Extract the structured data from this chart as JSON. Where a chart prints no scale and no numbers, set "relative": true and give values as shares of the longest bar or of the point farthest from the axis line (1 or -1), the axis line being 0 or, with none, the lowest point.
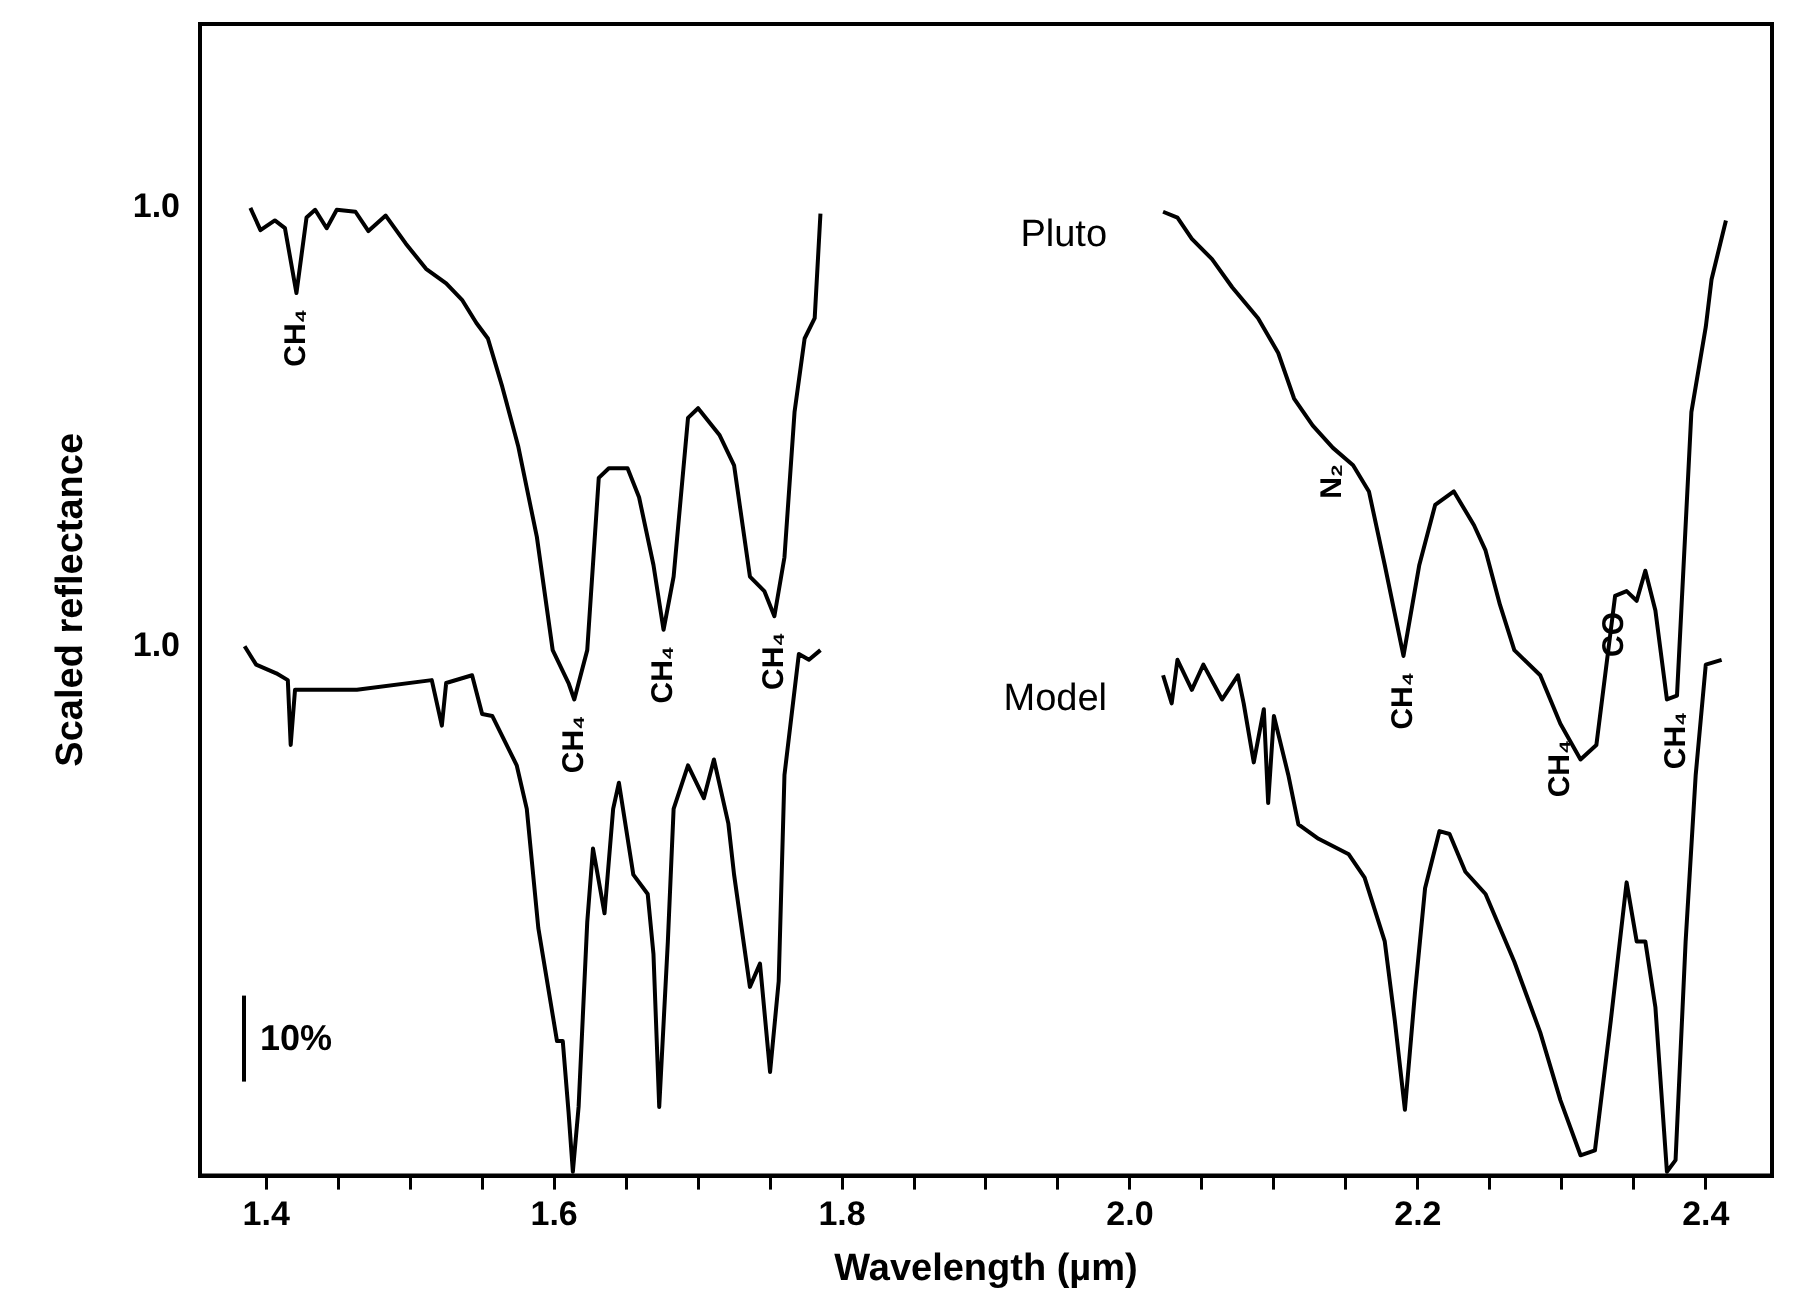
{
  "chart_data": {
    "type": "line",
    "xlabel": "Wavelength (µm)",
    "ylabel": "Scaled reflectance",
    "relative": true,
    "xlim": [
      1.354,
      2.446
    ],
    "xticks": [
      1.4,
      {
        "value": 1.45,
        "label": null
      },
      {
        "value": 1.5,
        "label": null
      },
      {
        "value": 1.55,
        "label": null
      },
      1.6,
      {
        "value": 1.65,
        "label": null
      },
      {
        "value": 1.7,
        "label": null
      },
      {
        "value": 1.75,
        "label": null
      },
      1.8,
      {
        "value": 1.85,
        "label": null
      },
      {
        "value": 1.9,
        "label": null
      },
      {
        "value": 1.95,
        "label": null
      },
      {
        "value": 2.0,
        "label": "2.0"
      },
      {
        "value": 2.05,
        "label": null
      },
      {
        "value": 2.1,
        "label": null
      },
      {
        "value": 2.15,
        "label": null
      },
      2.2,
      {
        "value": 2.25,
        "label": null
      },
      {
        "value": 2.3,
        "label": null
      },
      {
        "value": 2.35,
        "label": null
      },
      2.4
    ],
    "grid": false,
    "legend": false,
    "marker": "none",
    "line_style": "solid",
    "series": [
      {
        "name": "Pluto",
        "color": "#000000",
        "x": [
          1.389,
          1.396,
          1.406,
          1.413,
          1.421,
          1.428,
          1.434,
          1.442,
          1.449,
          1.462,
          1.471,
          1.483,
          1.497,
          1.511,
          1.525,
          1.536,
          1.546,
          1.554,
          1.564,
          1.575,
          1.588,
          1.599,
          1.61,
          1.614,
          1.623,
          1.631,
          1.638,
          1.651,
          1.659,
          1.669,
          1.676,
          1.683,
          1.693,
          1.7,
          1.715,
          1.725,
          1.736,
          1.746,
          1.753,
          1.76,
          1.767,
          1.774,
          1.781,
          1.785,
          1.9,
          2.023,
          2.033,
          2.043,
          2.057,
          2.071,
          2.089,
          2.103,
          2.114,
          2.127,
          2.141,
          2.155,
          2.166,
          2.177,
          2.19,
          2.201,
          2.212,
          2.225,
          2.239,
          2.247,
          2.257,
          2.267,
          2.285,
          2.299,
          2.313,
          2.324,
          2.337,
          2.345,
          2.352,
          2.358,
          2.365,
          2.373,
          2.38,
          2.39,
          2.4,
          2.404,
          2.414
        ],
        "values": [
          1.0,
          0.977,
          0.987,
          0.979,
          0.912,
          0.99,
          0.998,
          0.979,
          0.998,
          0.996,
          0.976,
          0.992,
          0.963,
          0.937,
          0.922,
          0.905,
          0.881,
          0.865,
          0.815,
          0.754,
          0.66,
          0.543,
          0.509,
          0.492,
          0.543,
          0.721,
          0.731,
          0.731,
          0.701,
          0.631,
          0.564,
          0.619,
          0.783,
          0.793,
          0.765,
          0.734,
          0.619,
          0.604,
          0.578,
          0.639,
          0.789,
          0.865,
          0.886,
          0.994,
          null,
          0.996,
          0.99,
          0.968,
          0.947,
          0.918,
          0.886,
          0.85,
          0.803,
          0.775,
          0.752,
          0.734,
          0.707,
          0.631,
          0.537,
          0.631,
          0.693,
          0.707,
          0.672,
          0.646,
          0.59,
          0.543,
          0.517,
          0.467,
          0.43,
          0.445,
          0.599,
          0.604,
          0.594,
          0.625,
          0.584,
          0.492,
          0.496,
          0.789,
          0.877,
          0.926,
          0.987
        ]
      },
      {
        "name": "Model",
        "color": "#000000",
        "x": [
          1.385,
          1.393,
          1.407,
          1.415,
          1.417,
          1.42,
          1.463,
          1.515,
          1.522,
          1.525,
          1.543,
          1.55,
          1.557,
          1.574,
          1.581,
          1.589,
          1.602,
          1.606,
          1.61,
          1.613,
          1.617,
          1.623,
          1.627,
          1.635,
          1.641,
          1.645,
          1.655,
          1.665,
          1.669,
          1.673,
          1.679,
          1.683,
          1.693,
          1.704,
          1.711,
          1.721,
          1.725,
          1.736,
          1.743,
          1.75,
          1.756,
          1.76,
          1.77,
          1.777,
          1.785,
          1.9,
          2.023,
          2.029,
          2.033,
          2.043,
          2.051,
          2.064,
          2.075,
          2.079,
          2.086,
          2.093,
          2.096,
          2.1,
          2.11,
          2.117,
          2.131,
          2.152,
          2.163,
          2.177,
          2.184,
          2.191,
          2.198,
          2.205,
          2.215,
          2.222,
          2.233,
          2.247,
          2.267,
          2.285,
          2.299,
          2.313,
          2.323,
          2.334,
          2.345,
          2.352,
          2.358,
          2.365,
          2.373,
          2.379,
          2.386,
          2.393,
          2.4,
          2.411
        ],
        "values": [
          0.547,
          0.528,
          0.519,
          0.512,
          0.445,
          0.502,
          0.502,
          0.512,
          0.465,
          0.509,
          0.517,
          0.477,
          0.475,
          0.424,
          0.379,
          0.256,
          0.139,
          0.139,
          0.066,
          0.004,
          0.071,
          0.262,
          0.338,
          0.271,
          0.379,
          0.406,
          0.311,
          0.291,
          0.229,
          0.071,
          0.242,
          0.379,
          0.424,
          0.39,
          0.43,
          0.364,
          0.311,
          0.195,
          0.219,
          0.107,
          0.201,
          0.414,
          0.539,
          0.533,
          0.543,
          null,
          0.517,
          0.488,
          0.533,
          0.502,
          0.528,
          0.492,
          0.517,
          0.488,
          0.427,
          0.482,
          0.385,
          0.475,
          0.414,
          0.363,
          0.348,
          0.332,
          0.308,
          0.242,
          0.16,
          0.068,
          0.189,
          0.297,
          0.356,
          0.353,
          0.314,
          0.291,
          0.221,
          0.148,
          0.078,
          0.021,
          0.026,
          0.16,
          0.303,
          0.242,
          0.242,
          0.174,
          0.004,
          0.016,
          0.242,
          0.414,
          0.528,
          0.533
        ]
      }
    ],
    "annotations": [
      "1.0",
      "1.0",
      "10%",
      {
        "text": "CH₄",
        "x": 1.421,
        "y": 0.912
      },
      {
        "text": "CH₄",
        "x": 1.614,
        "y": 0.492
      },
      {
        "text": "CH₄",
        "x": 1.676,
        "y": 0.564
      },
      {
        "text": "CH₄",
        "x": 1.753,
        "y": 0.578
      },
      {
        "text": "N₂",
        "x": 2.141,
        "y": 0.752
      },
      {
        "text": "CH₄",
        "x": 2.19,
        "y": 0.537
      },
      {
        "text": "CH₄",
        "x": 2.299,
        "y": 0.467
      },
      {
        "text": "CO",
        "x": 2.337,
        "y": 0.599
      },
      {
        "text": "CH₄",
        "x": 2.38,
        "y": 0.496
      }
    ]
  }
}
